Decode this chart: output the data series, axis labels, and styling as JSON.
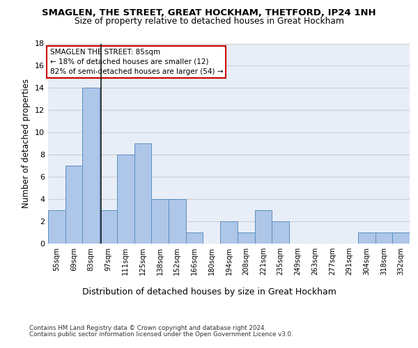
{
  "title1": "SMAGLEN, THE STREET, GREAT HOCKHAM, THETFORD, IP24 1NH",
  "title2": "Size of property relative to detached houses in Great Hockham",
  "xlabel": "Distribution of detached houses by size in Great Hockham",
  "ylabel": "Number of detached properties",
  "footnote1": "Contains HM Land Registry data © Crown copyright and database right 2024.",
  "footnote2": "Contains public sector information licensed under the Open Government Licence v3.0.",
  "annotation_line1": "SMAGLEN THE STREET: 85sqm",
  "annotation_line2": "← 18% of detached houses are smaller (12)",
  "annotation_line3": "82% of semi-detached houses are larger (54) →",
  "bar_color": "#aec6e8",
  "bar_edge_color": "#5a8fc2",
  "vline_color": "#1a1a1a",
  "annotation_box_color": "#ffffff",
  "annotation_box_edge_color": "#cc0000",
  "grid_color": "#cccccc",
  "background_color": "#e8eef8",
  "fig_background": "#ffffff",
  "categories": [
    "55sqm",
    "69sqm",
    "83sqm",
    "97sqm",
    "111sqm",
    "125sqm",
    "138sqm",
    "152sqm",
    "166sqm",
    "180sqm",
    "194sqm",
    "208sqm",
    "221sqm",
    "235sqm",
    "249sqm",
    "263sqm",
    "277sqm",
    "291sqm",
    "304sqm",
    "318sqm",
    "332sqm"
  ],
  "values": [
    3,
    7,
    14,
    3,
    8,
    9,
    4,
    4,
    1,
    0,
    2,
    1,
    3,
    2,
    0,
    0,
    0,
    0,
    1,
    1,
    1
  ],
  "vline_x": 2.57,
  "ylim": [
    0,
    18
  ],
  "yticks": [
    0,
    2,
    4,
    6,
    8,
    10,
    12,
    14,
    16,
    18
  ]
}
